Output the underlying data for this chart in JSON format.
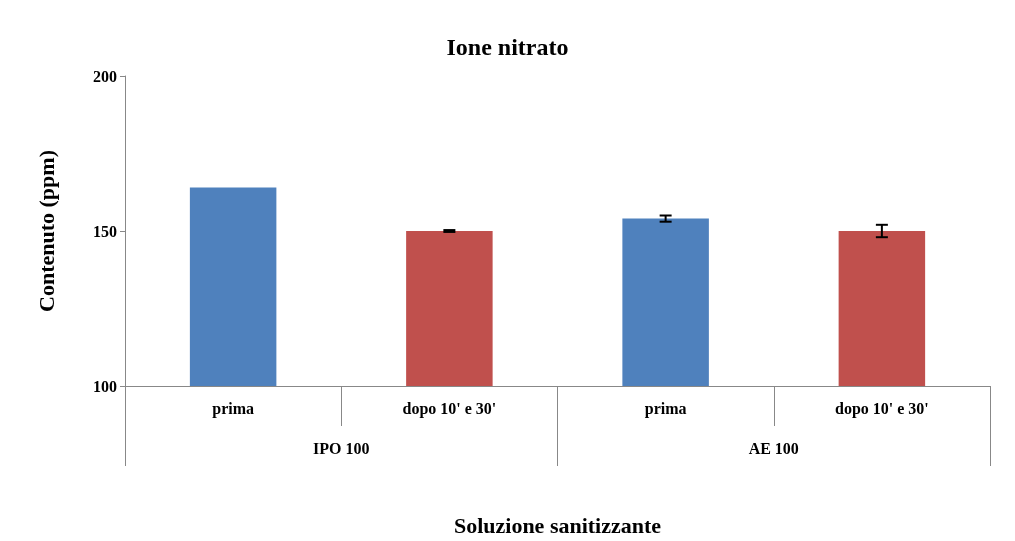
{
  "chart_data": {
    "type": "bar",
    "title": "Ione nitrato",
    "xlabel": "Soluzione sanitizzante",
    "ylabel": "Contenuto (ppm)",
    "categories": [
      "prima",
      "dopo 10' e 30'",
      "prima",
      "dopo 10' e 30'"
    ],
    "values": [
      164,
      150,
      154,
      150
    ],
    "colors": [
      "#4f81bd",
      "#c0504d",
      "#4f81bd",
      "#c0504d"
    ],
    "errors": [
      null,
      0.3,
      1,
      2
    ],
    "annotations": [
      "IPO 100",
      "AE 100"
    ],
    "ylim": [
      100,
      200
    ],
    "yticks": [
      100,
      150,
      200
    ],
    "grid": false
  }
}
